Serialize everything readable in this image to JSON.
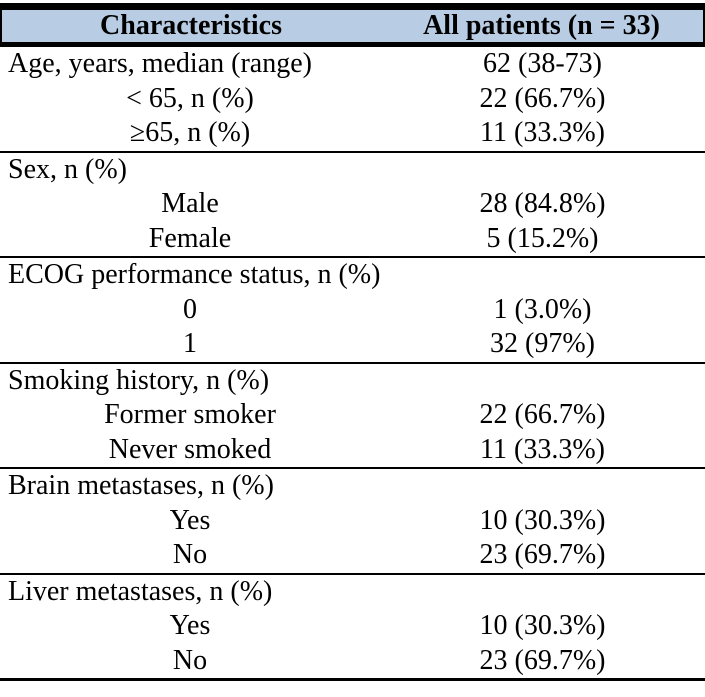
{
  "table": {
    "header": {
      "characteristics": "Characteristics",
      "all_patients": "All patients (n = 33)"
    },
    "sections": [
      {
        "name": "age",
        "rows": [
          {
            "label": "Age, years, median (range)",
            "value": "62 (38-73)"
          },
          {
            "label": "< 65, n (%)",
            "value": "22 (66.7%)"
          },
          {
            "label": "≥65, n (%)",
            "value": "11 (33.3%)"
          }
        ]
      },
      {
        "name": "sex",
        "rows": [
          {
            "label": "Sex, n (%)",
            "value": ""
          },
          {
            "label": "Male",
            "value": "28 (84.8%)"
          },
          {
            "label": "Female",
            "value": "5 (15.2%)"
          }
        ]
      },
      {
        "name": "ecog",
        "rows": [
          {
            "label": "ECOG performance status, n (%)",
            "value": ""
          },
          {
            "label": "0",
            "value": "1 (3.0%)"
          },
          {
            "label": "1",
            "value": "32 (97%)"
          }
        ]
      },
      {
        "name": "smoking",
        "rows": [
          {
            "label": "Smoking history, n (%)",
            "value": ""
          },
          {
            "label": "Former smoker",
            "value": "22 (66.7%)"
          },
          {
            "label": "Never smoked",
            "value": "11 (33.3%)"
          }
        ]
      },
      {
        "name": "brain-metastases",
        "rows": [
          {
            "label": "Brain metastases, n (%)",
            "value": ""
          },
          {
            "label": "Yes",
            "value": "10 (30.3%)"
          },
          {
            "label": "No",
            "value": "23 (69.7%)"
          }
        ]
      },
      {
        "name": "liver-metastases",
        "rows": [
          {
            "label": "Liver metastases, n (%)",
            "value": ""
          },
          {
            "label": "Yes",
            "value": "10 (30.3%)"
          },
          {
            "label": "No",
            "value": "23 (69.7%)"
          }
        ]
      }
    ]
  },
  "colors": {
    "header_bg": "#b8cce4",
    "border": "#000000",
    "text": "#000000"
  }
}
